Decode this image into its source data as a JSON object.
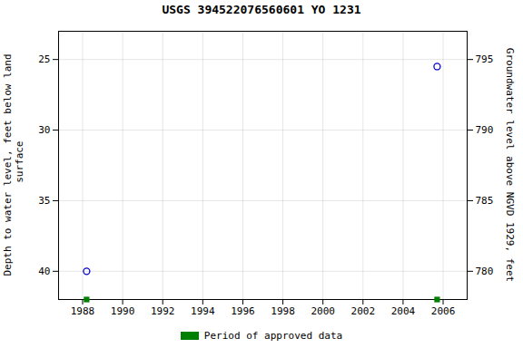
{
  "chart_data": {
    "type": "scatter",
    "title": "USGS 394522076560601 YO  1231",
    "x": [
      1988.2,
      2005.7
    ],
    "values": [
      40.0,
      25.5
    ],
    "color": "#0000CD",
    "marker": "circle",
    "xlim": [
      1986.8,
      2007.2
    ],
    "xticks": [
      1988,
      1990,
      1992,
      1994,
      1996,
      1998,
      2000,
      2002,
      2004,
      2006
    ],
    "ylim": [
      42.0,
      23.0
    ],
    "yticks": [
      25,
      30,
      35,
      40
    ],
    "ylabel": "Depth to water level, feet below land\n surface",
    "y2lim": [
      778.0,
      797.0
    ],
    "y2ticks": [
      780,
      785,
      790,
      795
    ],
    "y2label": "Groundwater level above NGVD 1929, feet",
    "grid": true,
    "legend": "bottom",
    "approved_data": {
      "name": "Period of approved data",
      "color": "#008000",
      "marker": "square",
      "x": [
        1988.2,
        2005.7
      ]
    }
  }
}
